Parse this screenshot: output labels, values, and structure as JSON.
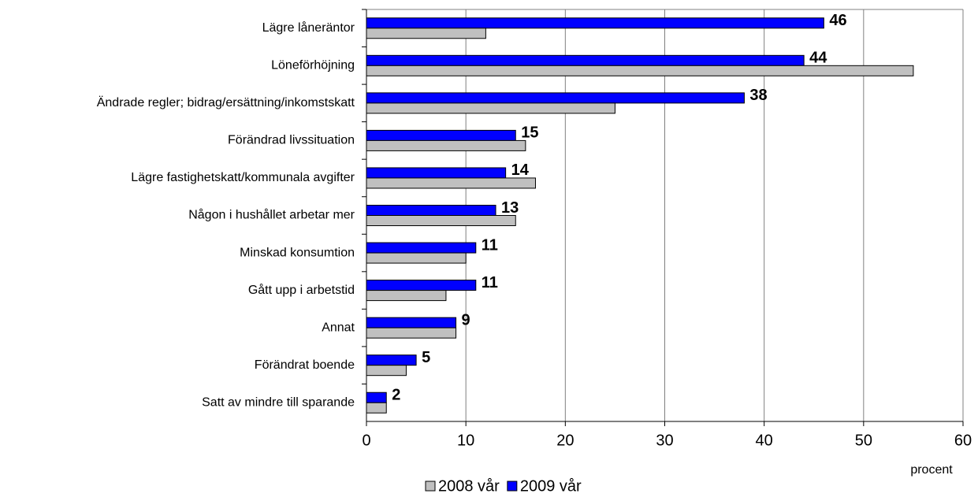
{
  "chart_data": {
    "type": "bar",
    "orientation": "horizontal",
    "categories": [
      "Lägre låneräntor",
      "Löneförhöjning",
      "Ändrade regler; bidrag/ersättning/inkomstskatt",
      "Förändrad livssituation",
      "Lägre fastighetskatt/kommunala avgifter",
      "Någon i hushållet arbetar mer",
      "Minskad konsumtion",
      "Gått upp i arbetstid",
      "Annat",
      "Förändrat boende",
      "Satt av mindre till sparande"
    ],
    "series": [
      {
        "name": "2008 vår",
        "color": "#c0c0c0",
        "values": [
          12,
          55,
          25,
          16,
          17,
          15,
          10,
          8,
          9,
          4,
          2
        ]
      },
      {
        "name": "2009 vår",
        "color": "#0000ff",
        "values": [
          46,
          44,
          38,
          15,
          14,
          13,
          11,
          11,
          9,
          5,
          2
        ]
      }
    ],
    "xlabel": "procent",
    "xlim": [
      0,
      60
    ],
    "xticks": [
      0,
      10,
      20,
      30,
      40,
      50,
      60
    ],
    "grid": true,
    "legend": "bottom"
  }
}
